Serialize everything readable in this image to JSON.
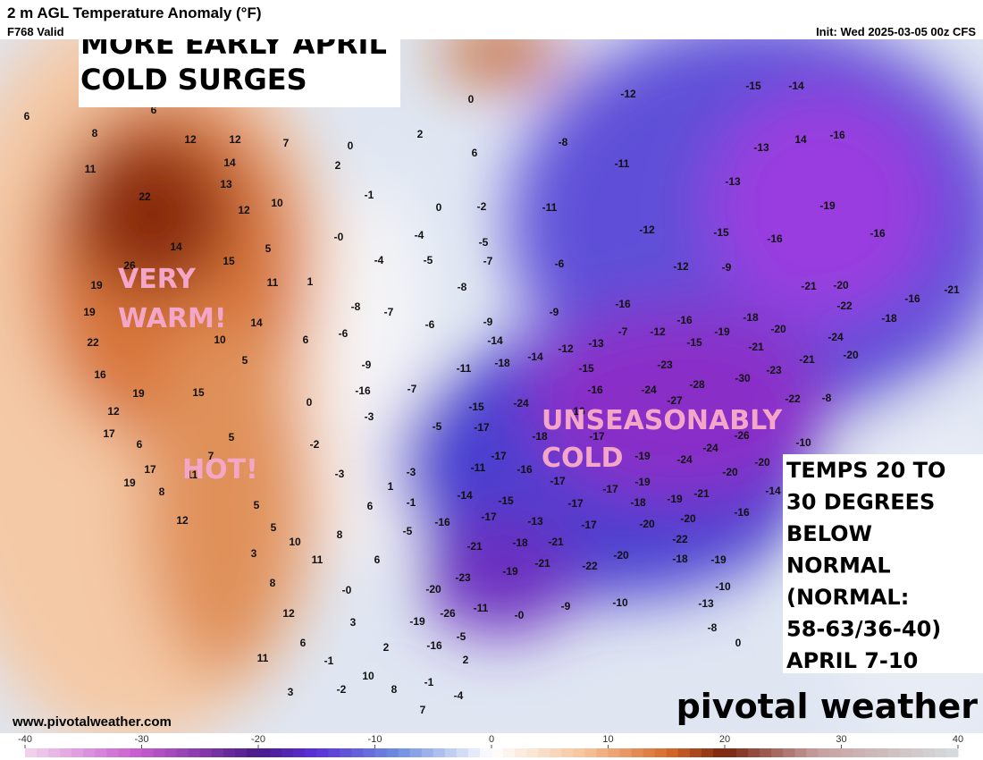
{
  "header": {
    "title": "2 m AGL Temperature Anomaly (°F)",
    "valid": "F768 Valid",
    "init": "Init: Wed 2025-03-05 00z CFS"
  },
  "annotations": {
    "headline": [
      "MORE EARLY APRIL",
      "COLD SURGES"
    ],
    "warm": [
      "VERY",
      "WARM!"
    ],
    "hot": "HOT!",
    "cold": [
      "UNSEASONABLY",
      "COLD"
    ],
    "note": [
      "TEMPS 20 TO",
      "30 DEGREES",
      "BELOW",
      "NORMAL",
      "(NORMAL:",
      "58-63/36-40)",
      "APRIL 7-10"
    ]
  },
  "footer": {
    "website": "www.pivotalweather.com",
    "brand": "pivotal weather"
  },
  "colorbar": {
    "xlim": [
      -40,
      40
    ],
    "ticks": [
      -40,
      -30,
      -20,
      -10,
      0,
      10,
      20,
      30,
      40
    ]
  },
  "map_values": [
    "6",
    "8",
    "6",
    "12",
    "12",
    "7",
    "11",
    "14",
    "13",
    "22",
    "12",
    "10",
    "0",
    "2",
    "-1",
    "0",
    "-2",
    "0",
    "2",
    "6",
    "-12",
    "-8",
    "-11",
    "-11",
    "-13",
    "-15",
    "-14",
    "-13",
    "14",
    "-16",
    "-19",
    "-16",
    "-15",
    "-16",
    "-12",
    "-12",
    "-9",
    "-6",
    "-5",
    "-7",
    "-4",
    "-5",
    "-8",
    "-0",
    "-4",
    "14",
    "5",
    "15",
    "26",
    "19",
    "11",
    "1",
    "19",
    "14",
    "10",
    "22",
    "6",
    "5",
    "16",
    "15",
    "19",
    "12",
    "17",
    "6",
    "17",
    "11",
    "19",
    "8",
    "5",
    "12",
    "5",
    "10",
    "3",
    "11",
    "8",
    "12",
    "6",
    "11",
    "3",
    "6",
    "-0",
    "3",
    "2",
    "-1",
    "10",
    "-2",
    "8",
    "-1",
    "7",
    "-4",
    "2",
    "-8",
    "-7",
    "-6",
    "-6",
    "-9",
    "-16",
    "-7",
    "0",
    "-3",
    "-5",
    "-2",
    "5",
    "7",
    "-3",
    "-3",
    "1",
    "6",
    "-1",
    "-5",
    "8",
    "-9",
    "-14",
    "-18",
    "-11",
    "-14",
    "-12",
    "-13",
    "-15",
    "-16",
    "-24",
    "-15",
    "-17",
    "-18",
    "-17",
    "-16",
    "-11",
    "-17",
    "-14",
    "-15",
    "-17",
    "-16",
    "-13",
    "-21",
    "-18",
    "-21",
    "-19",
    "-21",
    "-23",
    "-20",
    "-26",
    "-19",
    "-16",
    "-5",
    "-0",
    "-9",
    "-10",
    "-11",
    "-9",
    "-16",
    "-7",
    "-12",
    "-16",
    "-15",
    "-19",
    "-18",
    "-20",
    "-21",
    "-23",
    "-24",
    "-27",
    "-28",
    "-30",
    "-23",
    "-21",
    "-24",
    "-20",
    "-18",
    "-16",
    "-21",
    "-22",
    "-20",
    "-21",
    "-26",
    "-24",
    "-24",
    "-20",
    "-20",
    "-21",
    "-16",
    "-19",
    "-19",
    "-18",
    "-19",
    "-20",
    "-20",
    "-22",
    "-17",
    "-17",
    "-17",
    "-22",
    "-20",
    "-18",
    "-19",
    "-10",
    "-13",
    "-8",
    "0",
    "-17",
    "-16",
    "-8",
    "-10",
    "-22",
    "-14"
  ]
}
